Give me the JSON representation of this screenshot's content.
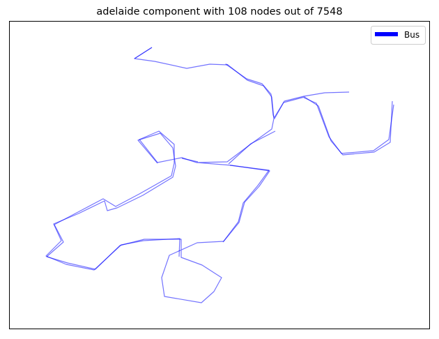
{
  "chart_data": {
    "type": "line",
    "title": "adelaide component with 108 nodes out of 7548",
    "xlabel": "",
    "ylabel": "",
    "grid": false,
    "axis_ticks": false,
    "legend": {
      "placement": "top-right",
      "entries": [
        "Bus"
      ]
    },
    "series": [
      {
        "name": "Bus",
        "color": "#0000ff",
        "alpha": 0.55,
        "segments": [
          [
            [
              218,
              68
            ],
            [
              193,
              84
            ],
            [
              222,
              88
            ],
            [
              268,
              98
            ],
            [
              301,
              92
            ],
            [
              327,
              93
            ],
            [
              355,
              115
            ],
            [
              378,
              123
            ],
            [
              390,
              139
            ],
            [
              393,
              170
            ],
            [
              390,
              185
            ],
            [
              358,
              208
            ],
            [
              326,
              232
            ],
            [
              282,
              233
            ],
            [
              261,
              226
            ],
            [
              226,
              233
            ],
            [
              200,
              200
            ],
            [
              228,
              188
            ],
            [
              250,
              207
            ],
            [
              250,
              234
            ],
            [
              246,
              252
            ],
            [
              200,
              278
            ],
            [
              166,
              296
            ],
            [
              148,
              285
            ],
            [
              112,
              304
            ],
            [
              78,
              322
            ],
            [
              91,
              347
            ],
            [
              67,
              368
            ],
            [
              97,
              377
            ],
            [
              137,
              386
            ],
            [
              172,
              352
            ],
            [
              207,
              343
            ],
            [
              260,
              343
            ],
            [
              260,
              369
            ],
            [
              290,
              380
            ],
            [
              318,
              398
            ],
            [
              307,
              418
            ],
            [
              289,
              434
            ],
            [
              236,
              425
            ],
            [
              232,
              398
            ],
            [
              243,
              366
            ],
            [
              283,
              348
            ],
            [
              321,
              346
            ],
            [
              343,
              319
            ],
            [
              351,
              290
            ],
            [
              372,
              267
            ],
            [
              387,
              245
            ],
            [
              332,
              237
            ],
            [
              282,
              233
            ]
          ],
          [
            [
              218,
              68
            ],
            [
              193,
              84
            ]
          ],
          [
            [
              327,
              93
            ],
            [
              324,
              92
            ],
            [
              354,
              113
            ],
            [
              376,
              120
            ],
            [
              389,
              135
            ],
            [
              392,
              165
            ],
            [
              394,
              170
            ],
            [
              407,
              147
            ],
            [
              437,
              139
            ],
            [
              457,
              152
            ],
            [
              475,
              202
            ],
            [
              492,
              222
            ],
            [
              537,
              218
            ],
            [
              560,
              204
            ],
            [
              563,
              145
            ]
          ],
          [
            [
              395,
              188
            ],
            [
              360,
              206
            ],
            [
              328,
              235
            ]
          ],
          [
            [
              394,
              168
            ],
            [
              408,
              145
            ],
            [
              436,
              138
            ],
            [
              466,
              133
            ],
            [
              501,
              132
            ]
          ],
          [
            [
              436,
              140
            ],
            [
              454,
              148
            ],
            [
              472,
              196
            ],
            [
              490,
              220
            ],
            [
              536,
              216
            ],
            [
              558,
              200
            ],
            [
              565,
              150
            ]
          ],
          [
            [
              226,
              234
            ],
            [
              198,
              201
            ],
            [
              230,
              191
            ],
            [
              248,
              212
            ],
            [
              252,
              238
            ],
            [
              248,
              254
            ],
            [
              205,
              280
            ],
            [
              168,
              298
            ],
            [
              154,
              302
            ],
            [
              150,
              288
            ],
            [
              113,
              306
            ],
            [
              77,
              321
            ],
            [
              88,
              345
            ],
            [
              66,
              367
            ],
            [
              95,
              379
            ],
            [
              135,
              387
            ],
            [
              174,
              351
            ],
            [
              206,
              345
            ],
            [
              258,
              342
            ],
            [
              257,
              368
            ]
          ],
          [
            [
              261,
              227
            ],
            [
              284,
              232
            ]
          ],
          [
            [
              320,
              347
            ],
            [
              342,
              318
            ],
            [
              349,
              291
            ],
            [
              370,
              266
            ],
            [
              386,
              244
            ],
            [
              330,
              237
            ]
          ]
        ]
      }
    ]
  }
}
